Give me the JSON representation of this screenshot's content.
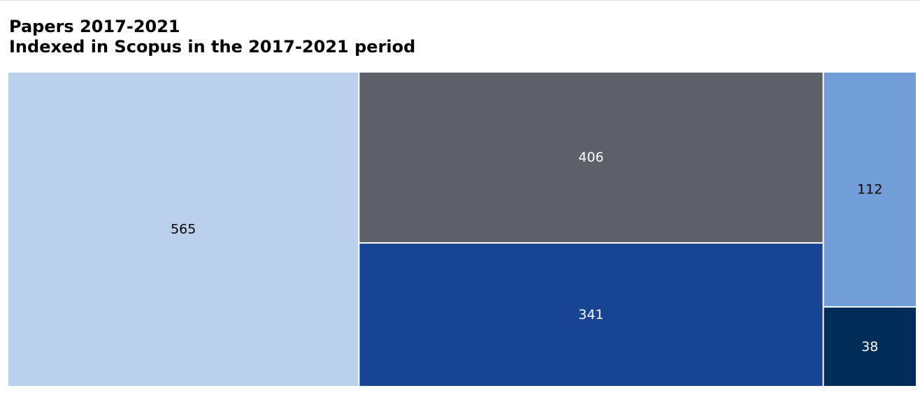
{
  "chart_data": {
    "type": "treemap",
    "title": "Papers 2017-2021",
    "subtitle": "Indexed in Scopus in the 2017-2021 period",
    "values": [
      565,
      406,
      341,
      112,
      38
    ],
    "labels": [
      "565",
      "406",
      "341",
      "112",
      "38"
    ],
    "colors": [
      "#bacfea",
      "#5d616a",
      "#174594",
      "#729dd8",
      "#012c59"
    ],
    "label_colors": [
      "#000000",
      "#ffffff",
      "#ffffff",
      "#000000",
      "#ffffff"
    ],
    "legend": "none",
    "grid": false
  }
}
